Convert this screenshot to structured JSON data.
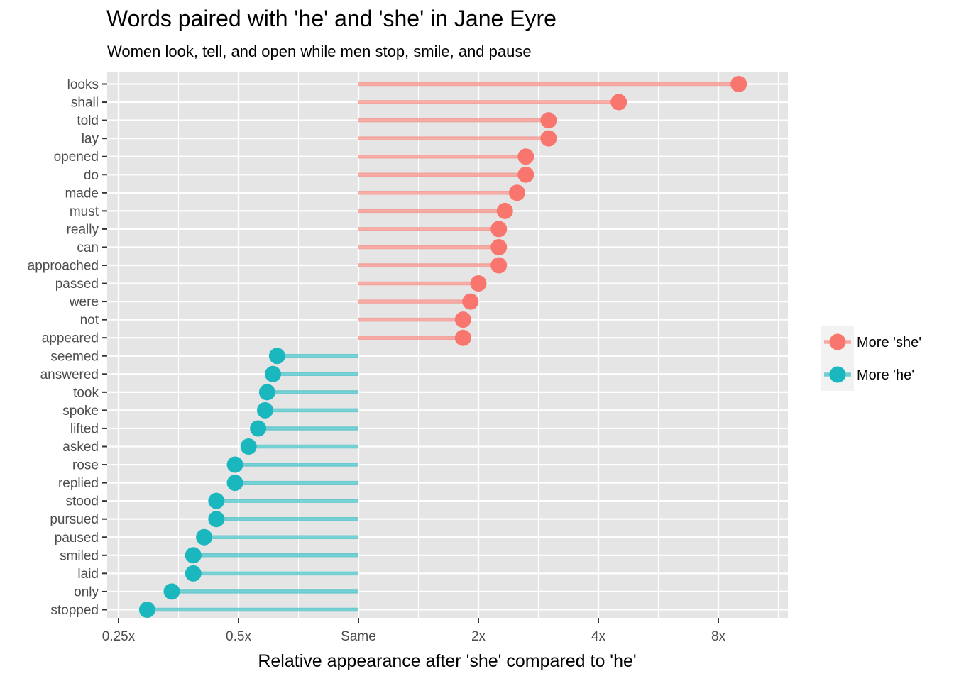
{
  "chart_data": {
    "type": "lollipop",
    "title": "Words paired with 'he' and 'she' in Jane Eyre",
    "subtitle": "Women look, tell, and open while men stop, smile, and pause",
    "xlabel": "Relative appearance after 'she' compared to 'he'",
    "ylabel": "",
    "x_scale": "log2",
    "xlim": [
      0.2,
      11.0
    ],
    "x_ticks": [
      {
        "value": 0.25,
        "label": "0.25x"
      },
      {
        "value": 0.5,
        "label": "0.5x"
      },
      {
        "value": 1,
        "label": "Same"
      },
      {
        "value": 2,
        "label": "2x"
      },
      {
        "value": 4,
        "label": "4x"
      },
      {
        "value": 8,
        "label": "8x"
      }
    ],
    "baseline": 1,
    "grid": true,
    "legend": {
      "position": "right",
      "items": [
        {
          "label": "More 'she'",
          "color": "#F8766D"
        },
        {
          "label": "More 'he'",
          "color": "#1AB8BE"
        }
      ]
    },
    "colors": {
      "she": "#F8766D",
      "he": "#1AB8BE",
      "panel": "#E5E5E5",
      "grid": "#FFFFFF"
    },
    "series": [
      {
        "label": "More 'she'",
        "color": "#F8766D",
        "points": [
          {
            "word": "looks",
            "value": 9.0
          },
          {
            "word": "shall",
            "value": 4.5
          },
          {
            "word": "told",
            "value": 3.0
          },
          {
            "word": "lay",
            "value": 3.0
          },
          {
            "word": "opened",
            "value": 2.63
          },
          {
            "word": "do",
            "value": 2.63
          },
          {
            "word": "made",
            "value": 2.5
          },
          {
            "word": "must",
            "value": 2.33
          },
          {
            "word": "really",
            "value": 2.25
          },
          {
            "word": "can",
            "value": 2.25
          },
          {
            "word": "approached",
            "value": 2.25
          },
          {
            "word": "passed",
            "value": 2.0
          },
          {
            "word": "were",
            "value": 1.91
          },
          {
            "word": "not",
            "value": 1.83
          },
          {
            "word": "appeared",
            "value": 1.83
          }
        ]
      },
      {
        "label": "More 'he'",
        "color": "#1AB8BE",
        "points": [
          {
            "word": "seemed",
            "value": 0.625
          },
          {
            "word": "answered",
            "value": 0.61
          },
          {
            "word": "took",
            "value": 0.59
          },
          {
            "word": "spoke",
            "value": 0.583
          },
          {
            "word": "lifted",
            "value": 0.56
          },
          {
            "word": "asked",
            "value": 0.53
          },
          {
            "word": "rose",
            "value": 0.49
          },
          {
            "word": "replied",
            "value": 0.49
          },
          {
            "word": "stood",
            "value": 0.44
          },
          {
            "word": "pursued",
            "value": 0.44
          },
          {
            "word": "paused",
            "value": 0.41
          },
          {
            "word": "smiled",
            "value": 0.385
          },
          {
            "word": "laid",
            "value": 0.385
          },
          {
            "word": "only",
            "value": 0.34
          },
          {
            "word": "stopped",
            "value": 0.295
          }
        ]
      }
    ]
  }
}
